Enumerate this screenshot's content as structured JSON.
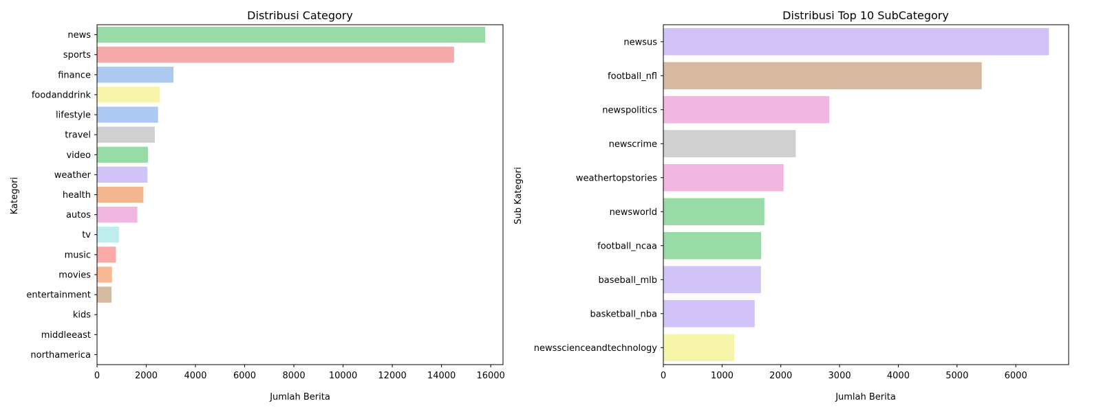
{
  "chart_data": [
    {
      "type": "bar",
      "orientation": "horizontal",
      "title": "Distribusi Category",
      "xlabel": "Jumlah Berita",
      "ylabel": "Kategori",
      "xlim": [
        0,
        16500
      ],
      "xticks": [
        0,
        2000,
        4000,
        6000,
        8000,
        10000,
        12000,
        14000,
        16000
      ],
      "grid": false,
      "categories": [
        "news",
        "sports",
        "finance",
        "foodanddrink",
        "lifestyle",
        "travel",
        "video",
        "weather",
        "health",
        "autos",
        "tv",
        "music",
        "movies",
        "entertainment",
        "kids",
        "middleeast",
        "northamerica"
      ],
      "values": [
        15774,
        14510,
        3107,
        2551,
        2479,
        2350,
        2068,
        2048,
        1885,
        1639,
        889,
        769,
        606,
        587,
        0,
        0,
        0
      ],
      "colors": [
        "#98dba7",
        "#f4aaaa",
        "#abc9f1",
        "#f6f5aa",
        "#abc9f1",
        "#d0d0d0",
        "#98dba7",
        "#d1c3f8",
        "#f1b68f",
        "#f0b7e0",
        "#bfecec",
        "#f9aaa7",
        "#f6b993",
        "#d6b99f",
        "#98dba7",
        "#98dba7",
        "#98dba7"
      ]
    },
    {
      "type": "bar",
      "orientation": "horizontal",
      "title": "Distribusi Top 10 SubCategory",
      "xlabel": "Jumlah Berita",
      "ylabel": "Sub Kategori",
      "xlim": [
        0,
        6900
      ],
      "xticks": [
        0,
        1000,
        2000,
        3000,
        4000,
        5000,
        6000
      ],
      "grid": false,
      "categories": [
        "newsus",
        "football_nfl",
        "newspolitics",
        "newscrime",
        "weathertopstories",
        "newsworld",
        "football_ncaa",
        "baseball_mlb",
        "basketball_nba",
        "newsscienceandtechnology"
      ],
      "values": [
        6564,
        5420,
        2826,
        2254,
        2047,
        1720,
        1665,
        1661,
        1555,
        1206
      ],
      "colors": [
        "#d1c3f8",
        "#d6b99f",
        "#f0b7e0",
        "#d0d0d0",
        "#f0b7e0",
        "#98dba7",
        "#98dba7",
        "#d1c3f8",
        "#d1c3f8",
        "#f6f5aa"
      ]
    }
  ]
}
